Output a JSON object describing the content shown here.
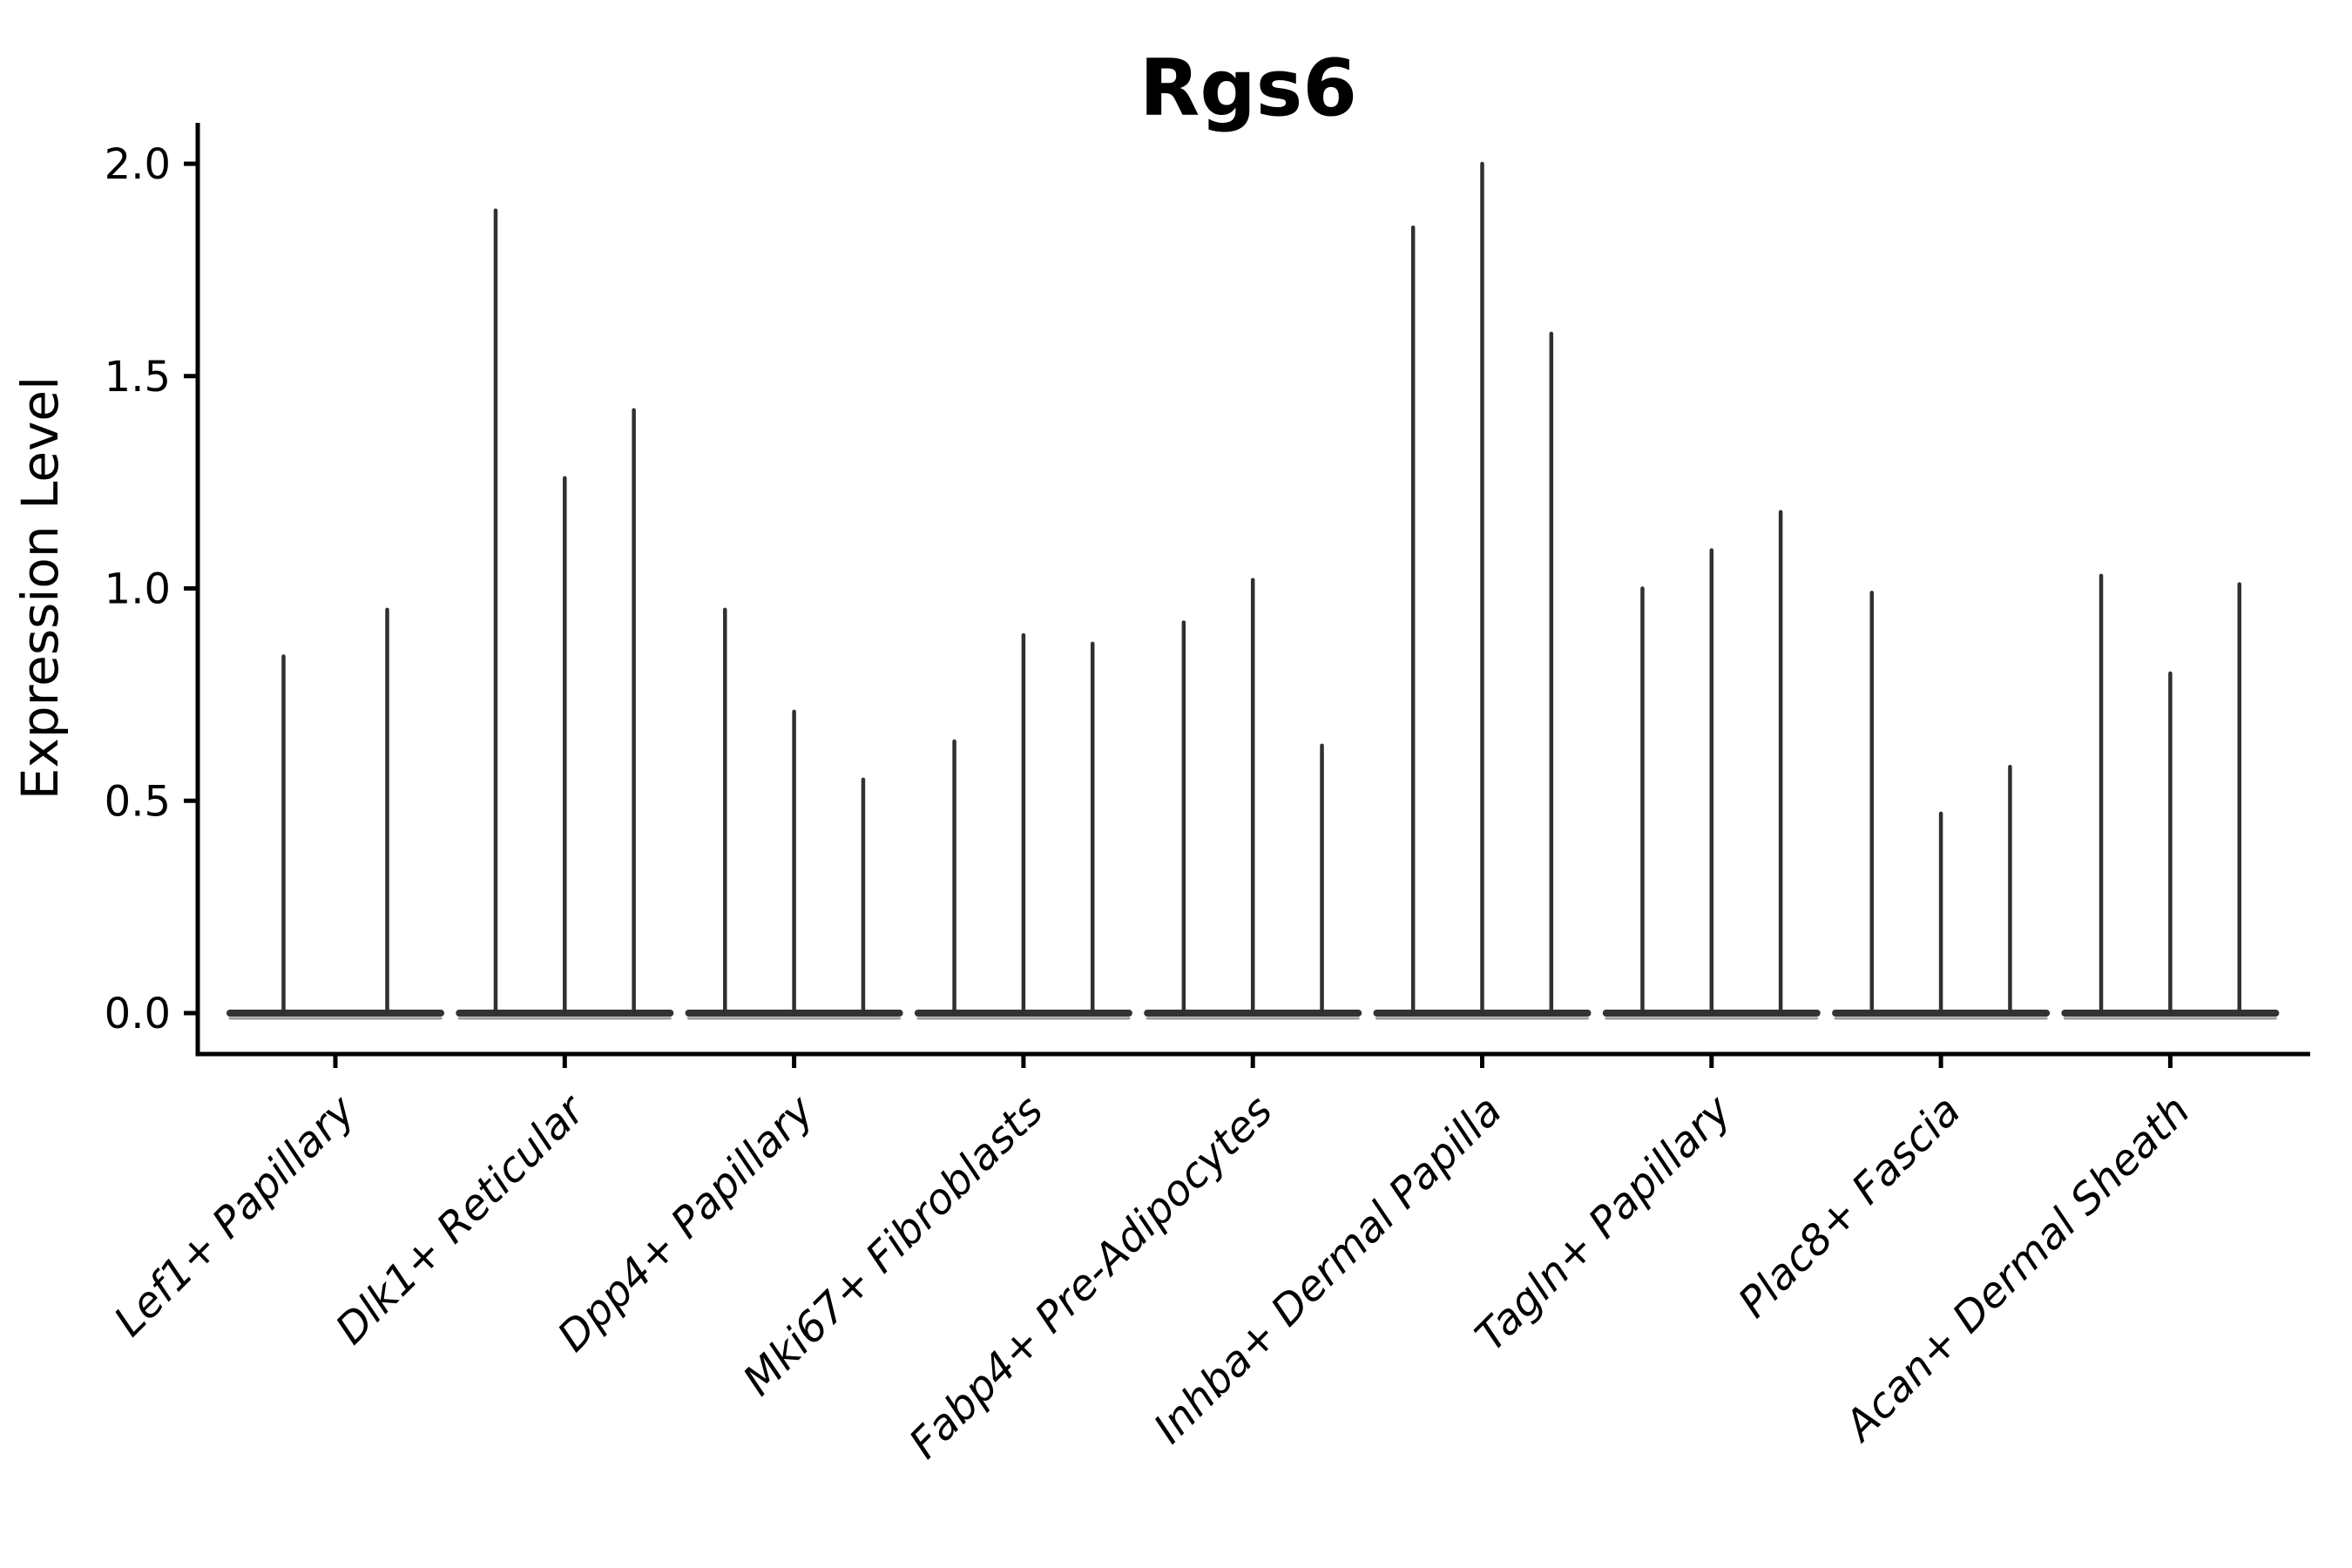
{
  "figure": {
    "background": "#ffffff"
  },
  "chart_data": {
    "type": "violin",
    "title": "Rgs6",
    "xlabel": "",
    "ylabel": "Expression Level",
    "ylim": [
      -0.1,
      2.1
    ],
    "ytick_values": [
      0.0,
      0.5,
      1.0,
      1.5,
      2.0
    ],
    "ytick_labels": [
      "0.0",
      "0.5",
      "1.0",
      "1.5",
      "2.0"
    ],
    "grid": false,
    "legend_position": "none",
    "style_note": "Seurat-style stacked violin: each violin is needle-thin (vertical spike up to its maximum expression) with a wide flat base collapsed at 0",
    "x_label_rotation_deg": 45,
    "categories": [
      "Lef1+ Papillary",
      "Dlk1+ Reticular",
      "Dpp4+ Papillary",
      "Mki67+ Fibroblasts",
      "Fabp4+ Pre-Adipocytes",
      "Inhba+ Dermal Papilla",
      "Tagln+ Papillary",
      "Plac8+ Fascia",
      "Acan+ Dermal Sheath"
    ],
    "groups": [
      {
        "category": "Lef1+ Papillary",
        "violin_peaks": [
          0.84,
          0.95
        ]
      },
      {
        "category": "Dlk1+ Reticular",
        "violin_peaks": [
          1.89,
          1.26,
          1.42
        ]
      },
      {
        "category": "Dpp4+ Papillary",
        "violin_peaks": [
          0.95,
          0.71,
          0.55
        ]
      },
      {
        "category": "Mki67+ Fibroblasts",
        "violin_peaks": [
          0.64,
          0.89,
          0.87
        ]
      },
      {
        "category": "Fabp4+ Pre-Adipocytes",
        "violin_peaks": [
          0.92,
          1.02,
          0.63
        ]
      },
      {
        "category": "Inhba+ Dermal Papilla",
        "violin_peaks": [
          1.85,
          2.0,
          1.6
        ]
      },
      {
        "category": "Tagln+ Papillary",
        "violin_peaks": [
          1.0,
          1.09,
          1.18
        ]
      },
      {
        "category": "Plac8+ Fascia",
        "violin_peaks": [
          0.99,
          0.47,
          0.58
        ]
      },
      {
        "category": "Acan+ Dermal Sheath",
        "violin_peaks": [
          1.03,
          0.8,
          1.01
        ]
      }
    ],
    "colors": {
      "violin_stroke": "#303030",
      "baseline_stroke": "#333333",
      "baseline_fringe": "#9b9b9b",
      "axis": "#000000",
      "text": "#000000",
      "background": "#ffffff"
    }
  }
}
